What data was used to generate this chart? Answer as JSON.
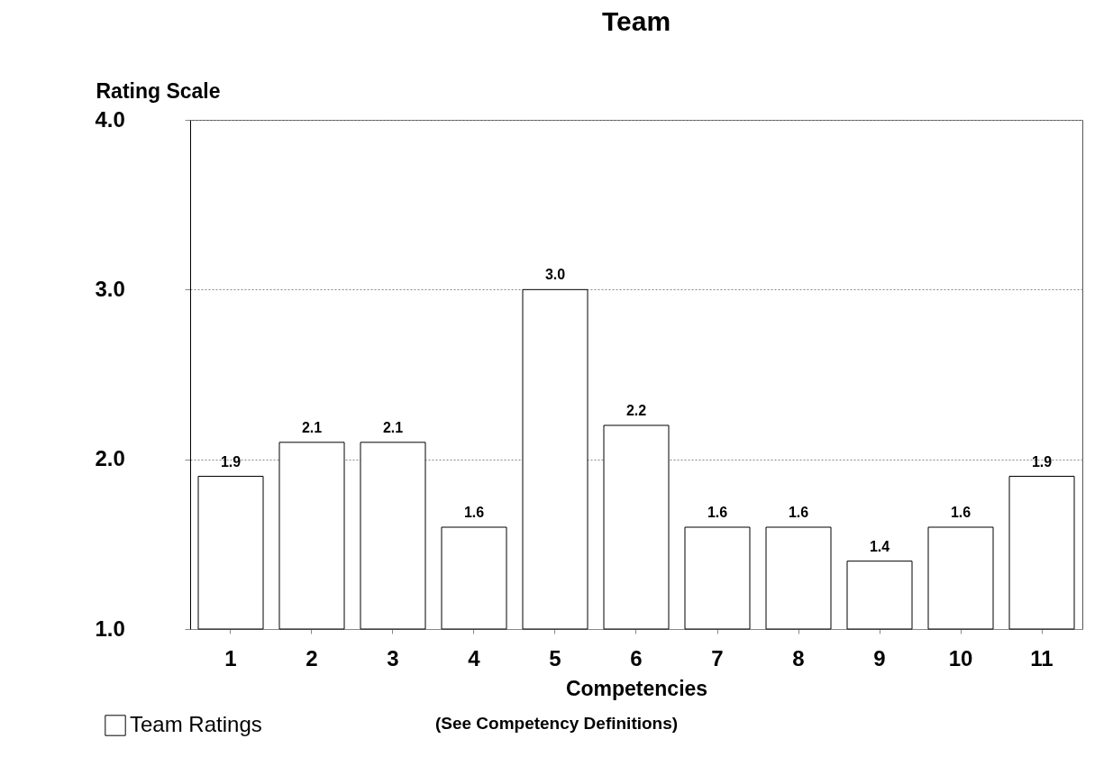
{
  "chart_data": {
    "type": "bar",
    "title": "Team",
    "xlabel": "Competencies",
    "ylabel": "Rating Scale",
    "annotations": [
      "(See Competency Definitions)"
    ],
    "categories": [
      "1",
      "2",
      "3",
      "4",
      "5",
      "6",
      "7",
      "8",
      "9",
      "10",
      "11"
    ],
    "series": [
      {
        "name": "Team Ratings",
        "color": "#ffffff",
        "values": [
          1.9,
          2.1,
          2.1,
          1.6,
          3.0,
          2.2,
          1.6,
          1.6,
          1.4,
          1.6,
          1.9
        ]
      }
    ],
    "ylim": [
      1,
      4
    ],
    "yticks": [
      {
        "value": 1,
        "label": "1.0"
      },
      {
        "value": 2,
        "label": "2.0"
      },
      {
        "value": 3,
        "label": "3.0"
      },
      {
        "value": 4,
        "label": "4.0"
      }
    ],
    "value_labels": [
      "1.9",
      "2.1",
      "2.1",
      "1.6",
      "3.0",
      "2.2",
      "1.6",
      "1.6",
      "1.4",
      "1.6",
      "1.9"
    ],
    "grid": "y",
    "legend": "bottom left"
  }
}
